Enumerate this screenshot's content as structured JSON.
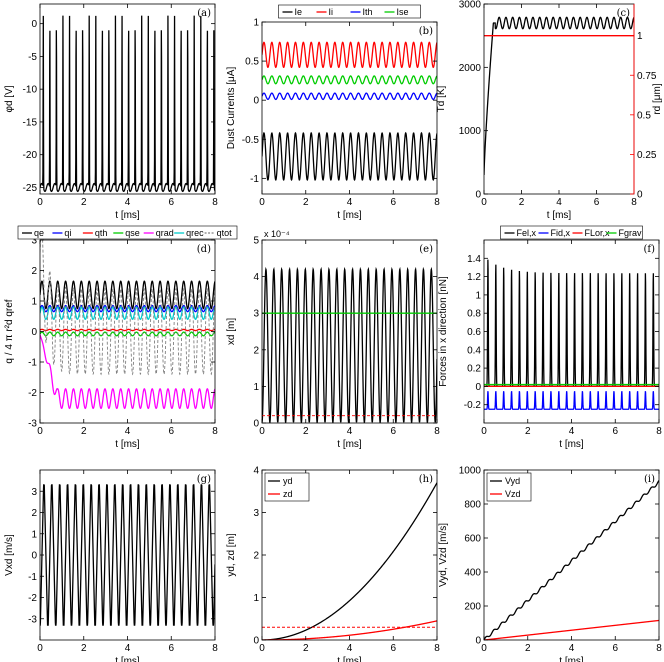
{
  "chart_data": [
    {
      "id": "a",
      "type": "line",
      "panel_label": "(a)",
      "xlabel": "t [ms]",
      "ylabel": "φd [V]",
      "xlim": [
        0,
        8
      ],
      "ylim": [
        -26,
        3
      ],
      "xticks": [
        "0",
        "2",
        "4",
        "6",
        "8"
      ],
      "yticks": [
        "0",
        "-5",
        "-10",
        "-15",
        "-20",
        "-25"
      ],
      "grid": false,
      "series": [
        {
          "color": "#000000",
          "baseline": -25.0,
          "peak": 1.5,
          "period_ms": 0.3
        }
      ]
    },
    {
      "id": "b",
      "type": "line",
      "panel_label": "(b)",
      "xlabel": "t [ms]",
      "ylabel": "Dust Currents [μA]",
      "xlim": [
        0,
        8
      ],
      "ylim": [
        -1.2,
        1.0
      ],
      "xticks": [
        "0",
        "2",
        "4",
        "6",
        "8"
      ],
      "yticks": [
        "1",
        "0.5",
        "0",
        "-0.5",
        "-1"
      ],
      "legend": "top",
      "grid": false,
      "series": [
        {
          "name": "Ie",
          "color": "#000000",
          "center": -0.72,
          "amplitude": 0.3,
          "period_ms": 0.36
        },
        {
          "name": "Ii",
          "color": "#ff0000",
          "center": 0.58,
          "amplitude": 0.16,
          "period_ms": 0.36
        },
        {
          "name": "Ith",
          "color": "#0000ff",
          "center": 0.05,
          "amplitude": 0.04,
          "period_ms": 0.36
        },
        {
          "name": "Ise",
          "color": "#00cc00",
          "center": 0.26,
          "amplitude": 0.05,
          "period_ms": 0.36
        }
      ]
    },
    {
      "id": "c",
      "type": "line",
      "panel_label": "(c)",
      "xlabel": "t [ms]",
      "ylabel": "Td [K]",
      "ylabel_right": "rd [μm]",
      "xlim": [
        0,
        8
      ],
      "ylim": [
        0,
        3000
      ],
      "ylim_right": [
        0,
        1.2
      ],
      "xticks": [
        "0",
        "2",
        "4",
        "6",
        "8"
      ],
      "yticks": [
        "0",
        "1000",
        "2000",
        "3000"
      ],
      "yticks_right": [
        "0",
        "0.25",
        "0.5",
        "0.75",
        "1"
      ],
      "grid": false,
      "series": [
        {
          "name": "Td",
          "color": "#000000",
          "start": 300,
          "plateau": 2700,
          "amplitude": 90,
          "period_ms": 0.36
        },
        {
          "name": "rd",
          "color": "#ff0000",
          "axis": "right",
          "value": 1.0
        }
      ]
    },
    {
      "id": "d",
      "type": "line",
      "panel_label": "(d)",
      "xlabel": "t [ms]",
      "ylabel": "q / 4 π r²d qref",
      "xlim": [
        0,
        8
      ],
      "ylim": [
        -3,
        3
      ],
      "xticks": [
        "0",
        "2",
        "4",
        "6",
        "8"
      ],
      "yticks": [
        "3",
        "2",
        "1",
        "0",
        "-1",
        "-2",
        "-3"
      ],
      "legend": "top",
      "grid": false,
      "series": [
        {
          "name": "qe",
          "color": "#000000",
          "center": 1.2,
          "amplitude": 0.45,
          "period_ms": 0.36
        },
        {
          "name": "qi",
          "color": "#0000ff",
          "center": 0.75,
          "amplitude": 0.1,
          "period_ms": 0.36
        },
        {
          "name": "qth",
          "color": "#ff0000",
          "center": 0.05,
          "amplitude": 0.02,
          "period_ms": 0.36
        },
        {
          "name": "qse",
          "color": "#00cc00",
          "center": -0.08,
          "amplitude": 0.06,
          "period_ms": 0.36
        },
        {
          "name": "qrad",
          "color": "#ff00ff",
          "center": -2.2,
          "amplitude": 0.32,
          "period_ms": 0.36
        },
        {
          "name": "qrec",
          "color": "#00cccc",
          "center": 0.6,
          "amplitude": 0.2,
          "period_ms": 0.36
        },
        {
          "name": "qtot",
          "color": "#808080",
          "dashed": true,
          "center": 0.0,
          "amplitude": 1.4,
          "period_ms": 0.36
        }
      ]
    },
    {
      "id": "e",
      "type": "line",
      "panel_label": "(e)",
      "xlabel": "t [ms]",
      "ylabel": "xd [m]",
      "exponent": "x 10⁻⁴",
      "xlim": [
        0,
        8
      ],
      "ylim": [
        0,
        5
      ],
      "xticks": [
        "0",
        "2",
        "4",
        "6",
        "8"
      ],
      "yticks": [
        "5",
        "4",
        "3",
        "2",
        "1",
        "0"
      ],
      "grid": false,
      "series": [
        {
          "color": "#000000",
          "min": 0.02,
          "max": 4.2,
          "period_ms": 0.36
        },
        {
          "color": "#00cc00",
          "value": 3.0
        },
        {
          "color": "#ff0000",
          "dashed": true,
          "value": 0.2
        }
      ]
    },
    {
      "id": "f",
      "type": "line",
      "panel_label": "(f)",
      "xlabel": "t [ms]",
      "ylabel": "Forces in x direction [nN]",
      "xlim": [
        0,
        8
      ],
      "ylim": [
        -0.4,
        1.6
      ],
      "xticks": [
        "0",
        "2",
        "4",
        "6",
        "8"
      ],
      "yticks": [
        "1.4",
        "1.2",
        "1",
        "0.8",
        "0.6",
        "0.4",
        "0.2",
        "0",
        "-0.2"
      ],
      "legend": "top",
      "grid": false,
      "series": [
        {
          "name": "Fel,x",
          "color": "#000000",
          "baseline": 0.0,
          "peak": 1.25,
          "period_ms": 0.36
        },
        {
          "name": "Fid,x",
          "color": "#0000ff",
          "baseline": -0.25,
          "peak": -0.05,
          "period_ms": 0.36
        },
        {
          "name": "FLor,x",
          "color": "#ff0000",
          "value": 0.0
        },
        {
          "name": "Fgrav",
          "color": "#00cc00",
          "value": 0.02
        }
      ]
    },
    {
      "id": "g",
      "type": "line",
      "panel_label": "(g)",
      "xlabel": "t [ms]",
      "ylabel": "Vxd [m/s]",
      "xlim": [
        0,
        8
      ],
      "ylim": [
        -4,
        4
      ],
      "xticks": [
        "0",
        "2",
        "4",
        "6",
        "8"
      ],
      "yticks": [
        "3",
        "2",
        "1",
        "0",
        "-1",
        "-2",
        "-3"
      ],
      "grid": false,
      "series": [
        {
          "color": "#000000",
          "amplitude": 3.3,
          "period_ms": 0.36
        }
      ]
    },
    {
      "id": "h",
      "type": "line",
      "panel_label": "(h)",
      "xlabel": "t [ms]",
      "ylabel": "yd, zd [m]",
      "xlim": [
        0,
        8
      ],
      "ylim": [
        0,
        4
      ],
      "xticks": [
        "0",
        "2",
        "4",
        "6",
        "8"
      ],
      "yticks": [
        "0",
        "1",
        "2",
        "3",
        "4"
      ],
      "legend": "top-left",
      "grid": false,
      "series": [
        {
          "name": "yd",
          "color": "#000000",
          "at_end": 3.7,
          "shape": "quadratic"
        },
        {
          "name": "zd",
          "color": "#ff0000",
          "at_end": 0.45,
          "shape": "quadratic"
        },
        {
          "color": "#ff0000",
          "dashed": true,
          "value": 0.3
        }
      ]
    },
    {
      "id": "i",
      "type": "line",
      "panel_label": "(i)",
      "xlabel": "t [ms]",
      "ylabel": "Vyd, Vzd [m/s]",
      "xlim": [
        0,
        8
      ],
      "ylim": [
        0,
        1000
      ],
      "xticks": [
        "0",
        "2",
        "4",
        "6",
        "8"
      ],
      "yticks": [
        "0",
        "200",
        "400",
        "600",
        "800",
        "1000"
      ],
      "legend": "top-left",
      "grid": false,
      "series": [
        {
          "name": "Vyd",
          "color": "#000000",
          "at_end": 930,
          "shape": "linear"
        },
        {
          "name": "Vzd",
          "color": "#ff0000",
          "at_end": 115,
          "shape": "linear"
        }
      ]
    }
  ]
}
